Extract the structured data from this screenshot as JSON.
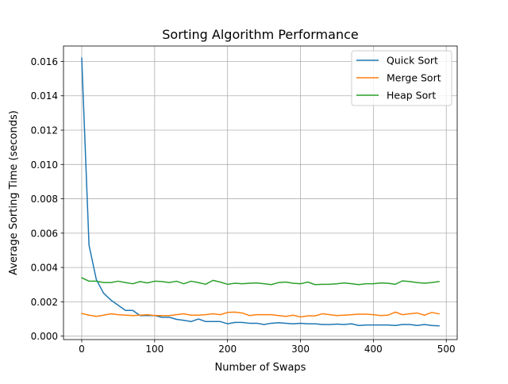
{
  "chart_data": {
    "type": "line",
    "title": "Sorting Algorithm Performance",
    "xlabel": "Number of Swaps",
    "ylabel": "Average Sorting Time (seconds)",
    "xlim": [
      -25,
      515
    ],
    "ylim": [
      -0.0002,
      0.0169
    ],
    "xticks": [
      0,
      100,
      200,
      300,
      400,
      500
    ],
    "xtick_labels": [
      "0",
      "100",
      "200",
      "300",
      "400",
      "500"
    ],
    "yticks": [
      0.0,
      0.002,
      0.004,
      0.006,
      0.008,
      0.01,
      0.012,
      0.014,
      0.016
    ],
    "ytick_labels": [
      "0.000",
      "0.002",
      "0.004",
      "0.006",
      "0.008",
      "0.010",
      "0.012",
      "0.014",
      "0.016"
    ],
    "grid": true,
    "legend_position": "top-right",
    "x": [
      0,
      10,
      20,
      30,
      40,
      50,
      60,
      70,
      80,
      90,
      100,
      110,
      120,
      130,
      140,
      150,
      160,
      170,
      180,
      190,
      200,
      210,
      220,
      230,
      240,
      250,
      260,
      270,
      280,
      290,
      300,
      310,
      320,
      330,
      340,
      350,
      360,
      370,
      380,
      390,
      400,
      410,
      420,
      430,
      440,
      450,
      460,
      470,
      480,
      490
    ],
    "series": [
      {
        "name": "Quick Sort",
        "color": "#1f77b4",
        "values": [
          0.0162,
          0.0053,
          0.0033,
          0.0025,
          0.0021,
          0.0018,
          0.0015,
          0.0015,
          0.0012,
          0.0012,
          0.0012,
          0.0011,
          0.0011,
          0.00098,
          0.00092,
          0.00085,
          0.001,
          0.00085,
          0.00085,
          0.00085,
          0.00072,
          0.0008,
          0.0008,
          0.00075,
          0.00075,
          0.00068,
          0.00075,
          0.00078,
          0.00075,
          0.00072,
          0.00075,
          0.00072,
          0.00072,
          0.00068,
          0.00068,
          0.0007,
          0.00068,
          0.00072,
          0.00062,
          0.00065,
          0.00065,
          0.00065,
          0.00065,
          0.00062,
          0.00068,
          0.00068,
          0.00062,
          0.00068,
          0.00062,
          0.0006
        ]
      },
      {
        "name": "Merge Sort",
        "color": "#ff7f0e",
        "values": [
          0.00132,
          0.00122,
          0.00115,
          0.00122,
          0.0013,
          0.00125,
          0.00122,
          0.0012,
          0.00122,
          0.00125,
          0.0012,
          0.0012,
          0.0012,
          0.00125,
          0.0013,
          0.00122,
          0.00122,
          0.00125,
          0.0013,
          0.00125,
          0.00138,
          0.0014,
          0.00135,
          0.0012,
          0.00125,
          0.00125,
          0.00125,
          0.0012,
          0.00115,
          0.00122,
          0.00112,
          0.00118,
          0.00118,
          0.0013,
          0.00125,
          0.0012,
          0.00122,
          0.00125,
          0.00128,
          0.00128,
          0.00125,
          0.0012,
          0.00122,
          0.0014,
          0.00125,
          0.0013,
          0.00135,
          0.00122,
          0.00138,
          0.0013
        ]
      },
      {
        "name": "Heap Sort",
        "color": "#2ca02c",
        "values": [
          0.0034,
          0.0032,
          0.0032,
          0.00312,
          0.00312,
          0.0032,
          0.00312,
          0.00305,
          0.00318,
          0.0031,
          0.0032,
          0.00318,
          0.00312,
          0.0032,
          0.00305,
          0.0032,
          0.00312,
          0.00302,
          0.00325,
          0.00315,
          0.00302,
          0.00308,
          0.00305,
          0.00308,
          0.0031,
          0.00305,
          0.003,
          0.00312,
          0.00315,
          0.00308,
          0.00305,
          0.00315,
          0.003,
          0.00302,
          0.00302,
          0.00305,
          0.0031,
          0.00305,
          0.003,
          0.00305,
          0.00305,
          0.0031,
          0.00308,
          0.00302,
          0.00322,
          0.00318,
          0.00312,
          0.00308,
          0.00312,
          0.00318
        ]
      }
    ]
  }
}
